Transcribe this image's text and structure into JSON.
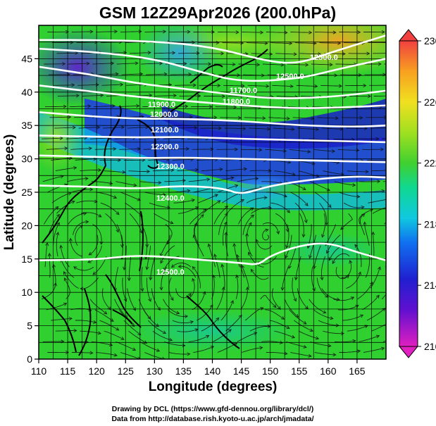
{
  "title": "GSM 12Z29Apr2026 (200.0hPa)",
  "xlabel": "Longitude (degrees)",
  "ylabel": "Latitude  (degrees)",
  "x_ticks": [
    "110",
    "115",
    "120",
    "125",
    "130",
    "135",
    "140",
    "145",
    "150",
    "155",
    "160",
    "165"
  ],
  "y_ticks": [
    "0",
    "5",
    "10",
    "15",
    "20",
    "25",
    "30",
    "35",
    "40",
    "45"
  ],
  "colorbar": {
    "labels": [
      "210",
      "214",
      "218",
      "222",
      "226",
      "230"
    ],
    "colors": {
      "210": "#e020c0",
      "212": "#8020d0",
      "214": "#2020d0",
      "216": "#1060e8",
      "218": "#10c0e0",
      "220": "#10d8a0",
      "222": "#30d030",
      "224": "#a0e020",
      "226": "#f0e020",
      "228": "#f8a020",
      "230": "#f04040"
    }
  },
  "contour_labels": [
    "11900.0",
    "12000.0",
    "12100.0",
    "12200.0",
    "12300.0",
    "12400.0",
    "12500.0",
    "11800.0",
    "11700.0",
    "12500.0",
    "12500.0"
  ],
  "credits": {
    "line1": "Drawing by DCL (https://www.gfd-dennou.org/library/dcl/)",
    "line2": "Data from http://database.rish.kyoto-u.ac.jp/arch/jmadata/"
  },
  "chart_data": {
    "type": "map",
    "title": "GSM 12Z29Apr2026 (200.0hPa)",
    "xlabel": "Longitude (degrees)",
    "ylabel": "Latitude  (degrees)",
    "xlim": [
      110,
      170
    ],
    "ylim": [
      0,
      50
    ],
    "x_ticks": [
      110,
      115,
      120,
      125,
      130,
      135,
      140,
      145,
      150,
      155,
      160,
      165
    ],
    "y_ticks": [
      0,
      5,
      10,
      15,
      20,
      25,
      30,
      35,
      40,
      45
    ],
    "colorbar_range": [
      210,
      230
    ],
    "colorbar_ticks": [
      210,
      214,
      218,
      222,
      226,
      230
    ],
    "grid": true,
    "contour_values": [
      11700,
      11800,
      11900,
      12000,
      12100,
      12200,
      12300,
      12400,
      12500
    ],
    "contours": [
      {
        "level": 11700,
        "points": [
          [
            110,
            47.8
          ],
          [
            120,
            47.8
          ],
          [
            130,
            47.6
          ],
          [
            140,
            46.8
          ],
          [
            150,
            44.5
          ],
          [
            155,
            44.3
          ],
          [
            160,
            45.8
          ],
          [
            170,
            48.5
          ]
        ]
      },
      {
        "level": 11800,
        "points": [
          [
            110,
            46.5
          ],
          [
            120,
            46.0
          ],
          [
            130,
            45.0
          ],
          [
            138,
            43.0
          ],
          [
            145,
            41.5
          ],
          [
            155,
            42.0
          ],
          [
            162,
            43.5
          ],
          [
            170,
            45.0
          ]
        ]
      },
      {
        "level": 11900,
        "points": [
          [
            110,
            43.8
          ],
          [
            120,
            42.5
          ],
          [
            127,
            41.3
          ],
          [
            135,
            40.5
          ],
          [
            142,
            39.8
          ],
          [
            150,
            39.0
          ],
          [
            160,
            39.2
          ],
          [
            170,
            40.2
          ]
        ]
      },
      {
        "level": 12000,
        "points": [
          [
            110,
            41.0
          ],
          [
            120,
            40.0
          ],
          [
            128,
            39.2
          ],
          [
            135,
            38.7
          ],
          [
            145,
            38.0
          ],
          [
            155,
            37.5
          ],
          [
            165,
            37.8
          ],
          [
            170,
            38.0
          ]
        ]
      },
      {
        "level": 12100,
        "points": [
          [
            110,
            37.0
          ],
          [
            120,
            36.3
          ],
          [
            128,
            36.0
          ],
          [
            135,
            36.0
          ],
          [
            145,
            35.7
          ],
          [
            155,
            35.0
          ],
          [
            165,
            34.8
          ],
          [
            170,
            35.0
          ]
        ]
      },
      {
        "level": 12200,
        "points": [
          [
            110,
            33.5
          ],
          [
            120,
            33.3
          ],
          [
            128,
            33.2
          ],
          [
            135,
            33.3
          ],
          [
            145,
            33.0
          ],
          [
            155,
            32.8
          ],
          [
            165,
            32.6
          ],
          [
            170,
            32.5
          ]
        ]
      },
      {
        "level": 12300,
        "points": [
          [
            110,
            30.5
          ],
          [
            120,
            30.3
          ],
          [
            128,
            30.1
          ],
          [
            135,
            30.2
          ],
          [
            145,
            30.0
          ],
          [
            155,
            29.8
          ],
          [
            165,
            29.6
          ],
          [
            170,
            29.5
          ]
        ]
      },
      {
        "level": 12400,
        "points": [
          [
            110,
            26.0
          ],
          [
            120,
            25.8
          ],
          [
            127,
            25.5
          ],
          [
            135,
            26.0
          ],
          [
            142,
            25.6
          ],
          [
            145,
            24.6
          ],
          [
            150,
            26.0
          ],
          [
            158,
            27.0
          ],
          [
            165,
            27.4
          ],
          [
            170,
            27.2
          ]
        ]
      },
      {
        "level": 12500,
        "points": [
          [
            110,
            14.8
          ],
          [
            120,
            14.9
          ],
          [
            127,
            15.6
          ],
          [
            135,
            15.1
          ],
          [
            145,
            14.4
          ],
          [
            148,
            14.1
          ],
          [
            150,
            15.5
          ],
          [
            155,
            17.0
          ],
          [
            160,
            17.5
          ],
          [
            165,
            16.0
          ],
          [
            170,
            14.8
          ]
        ]
      }
    ],
    "wind_field": "streamlines of 200hPa wind, strong westerly jet near 30-40N"
  }
}
